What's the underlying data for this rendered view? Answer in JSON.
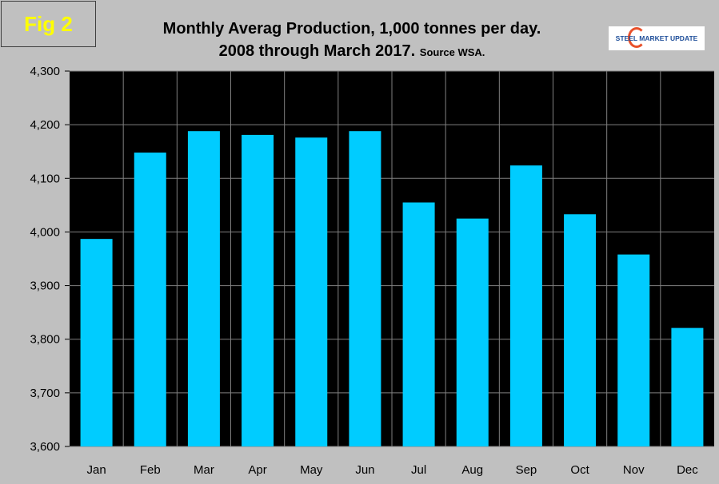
{
  "figure_label": "Fig 2",
  "logo_text": "STEEL MARKET UPDATE",
  "chart_data": {
    "type": "bar",
    "title": "Monthly Averag Production, 1,000 tonnes per day.",
    "subtitle": "2008 through March 2017.",
    "source": "Source WSA.",
    "categories": [
      "Jan",
      "Feb",
      "Mar",
      "Apr",
      "May",
      "Jun",
      "Jul",
      "Aug",
      "Sep",
      "Oct",
      "Nov",
      "Dec"
    ],
    "values": [
      3987,
      4148,
      4188,
      4181,
      4176,
      4188,
      4055,
      4025,
      4124,
      4033,
      3958,
      3821
    ],
    "ylim": [
      3600,
      4300
    ],
    "yticks": [
      "3,600",
      "3,700",
      "3,800",
      "3,900",
      "4,000",
      "4,100",
      "4,200",
      "4,300"
    ],
    "grid": true,
    "bar_color": "#00ccff",
    "plot_background": "#000000",
    "xlabel": "",
    "ylabel": ""
  }
}
